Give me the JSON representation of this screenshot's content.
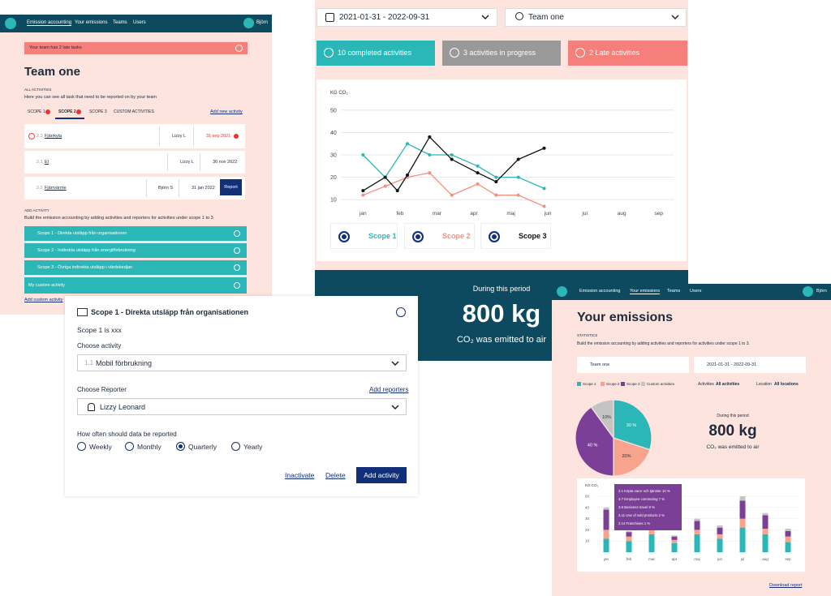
{
  "team_screen": {
    "nav": [
      "Emission accounting",
      "Your emissions",
      "Teams",
      "Users"
    ],
    "user": "Björn",
    "alert": "Your team has 2 late tasks",
    "title": "Team one",
    "section_label": "ALL ACTIVITIES",
    "section_text": "Here you can see all task that need to be reported on by your team",
    "tabs": [
      "SCOPE 1",
      "SCOPE 2",
      "SCOPE 3",
      "CUSTOM ACTIVITIES"
    ],
    "add_new": "Add new activity",
    "rows": [
      {
        "code": "2.3",
        "name": "Fjärrkyla",
        "reporter": "Lizzy L",
        "date": "31 sep 2021"
      },
      {
        "code": "2.1",
        "name": "El",
        "reporter": "Lizzy L",
        "date": "30 nov 2022"
      },
      {
        "code": "2.2",
        "name": "Fjärrvärme",
        "reporter": "Björn S",
        "date": "31 jan 2022",
        "action": "Report"
      }
    ],
    "add_label": "ADD ACTIVITY",
    "add_text": "Build the emission accounting by adding activities and reporters for activities under scope 1 to 3",
    "scopes": [
      "Scope 1 - Direkta utsläpp från organisationen",
      "Scope 2 - Indirekta utsläpp från energiförbrukning",
      "Scope 3 - Övriga indirekta utsläpp i värdekedjan",
      "My custom activity"
    ],
    "add_custom": "Add custom activity"
  },
  "overview": {
    "date_range": "2021-01-31 - 2022-09-31",
    "team": "Team one",
    "status": [
      "10 completed activities",
      "3 activities in progress",
      "2 Late activities"
    ],
    "period_label": "During this period",
    "total": "800 kg",
    "total_note": "CO₂ was emitted to air"
  },
  "modal": {
    "title": "Scope 1 - Direkta utsläpp från organisationen",
    "description": "Scope 1 is xxx",
    "activity_label": "Choose activity",
    "activity_code": "1.1",
    "activity": "Mobil förbrukning",
    "reporter_label": "Choose Reporter",
    "add_reporters": "Add reporters",
    "reporter": "Lizzy Leonard",
    "frequency_label": "How often should data be reported",
    "frequencies": [
      "Weekly",
      "Monthly",
      "Quarterly",
      "Yearly"
    ],
    "selected_frequency": 2,
    "inactivate": "Inactivate",
    "delete": "Delete",
    "submit": "Add activity"
  },
  "emissions_screen": {
    "nav": [
      "Emission accounting",
      "Your emissions",
      "Teams",
      "Users"
    ],
    "user": "Björn",
    "title": "Your emissions",
    "section_label": "STATISTICS",
    "section_text": "Build the emission accounting by adding activities and reporters for activities under scope 1 to 3.",
    "team": "Team one",
    "date_range": "2021-01-31 - 2022-09-31",
    "activities_label": "Activities",
    "activities_value": "All activities",
    "location_label": "Location",
    "location_value": "All locations",
    "period_label": "During this period",
    "total": "800 kg",
    "total_note": "CO₂ was emitted to air",
    "tooltip": [
      "3.1 Köpta varor och tjänster   10 %",
      "3.7 Employee commuting   7 %",
      "3.6 Business travel   9 %",
      "3.11 Use of sold products   2 %",
      "3.14 Franchises   1 %"
    ],
    "download": "Download report"
  },
  "chart_data": [
    {
      "type": "line",
      "y_label": "KG CO₂",
      "xlim": [
        -0.6,
        8.4
      ],
      "xticks": [
        {
          "value": 0,
          "label": "jan"
        },
        {
          "value": 1,
          "label": "feb"
        },
        {
          "value": 2,
          "label": "mar"
        },
        {
          "value": 3,
          "label": "apr"
        },
        {
          "value": 4,
          "label": "maj"
        },
        {
          "value": 5,
          "label": "jun"
        },
        {
          "value": 6,
          "label": "jul"
        },
        {
          "value": 7,
          "label": "aug"
        },
        {
          "value": 8,
          "label": "sep"
        }
      ],
      "ylim": [
        5,
        55
      ],
      "yticks": [
        10,
        20,
        30,
        40,
        50
      ],
      "grid": true,
      "series": [
        {
          "name": "Scope 1",
          "color": "#2bb7b7",
          "x": [
            0,
            0.6,
            1.2,
            1.8,
            2.4,
            3.1,
            3.6,
            4.2,
            4.9
          ],
          "values": [
            30,
            20,
            35,
            30,
            30,
            25,
            20,
            20,
            15
          ]
        },
        {
          "name": "Scope 2",
          "color": "#f48f7d",
          "x": [
            0,
            0.6,
            1.2,
            1.8,
            2.4,
            3.1,
            3.6,
            4.2,
            4.9
          ],
          "values": [
            12,
            16,
            20,
            22,
            12,
            17,
            12,
            12,
            7
          ]
        },
        {
          "name": "Scope 3",
          "color": "#111111",
          "x": [
            0,
            0.6,
            0.93,
            1.2,
            1.8,
            2.4,
            3.1,
            3.6,
            4.2,
            4.9
          ],
          "values": [
            14,
            20,
            14,
            21,
            38,
            28,
            22,
            18,
            28,
            33
          ]
        }
      ]
    },
    {
      "type": "pie",
      "values": [
        30,
        20,
        40,
        10
      ],
      "value_labels": [
        "30 %",
        "20%",
        "40 %",
        "10%"
      ],
      "colors": [
        "#2bb7b7",
        "#f7a48f",
        "#7b3f98",
        "#c4c4c4"
      ]
    },
    {
      "type": "bar",
      "stacked": true,
      "y_label": "KG CO₂",
      "categories": [
        "jan",
        "feb",
        "mar",
        "apr",
        "maj",
        "jun",
        "jul",
        "aug",
        "sep"
      ],
      "ylim": [
        0,
        50
      ],
      "yticks": [
        10,
        20,
        30,
        40,
        50
      ],
      "grid": true,
      "series": [
        {
          "name": "Scope 1",
          "color": "#2bb7b7",
          "values": [
            12,
            10,
            16,
            8,
            16,
            12,
            22,
            16,
            9
          ]
        },
        {
          "name": "Scope 2",
          "color": "#f7a48f",
          "values": [
            8,
            4,
            4,
            3,
            4,
            4,
            8,
            5,
            5
          ]
        },
        {
          "name": "Scope 3",
          "color": "#7b3f98",
          "values": [
            18,
            4,
            8,
            3,
            8,
            6,
            16,
            12,
            5
          ]
        },
        {
          "name": "Custom activities",
          "color": "#c4c4c4",
          "values": [
            2,
            1,
            2,
            1,
            2,
            2,
            4,
            2,
            2
          ]
        }
      ]
    }
  ]
}
